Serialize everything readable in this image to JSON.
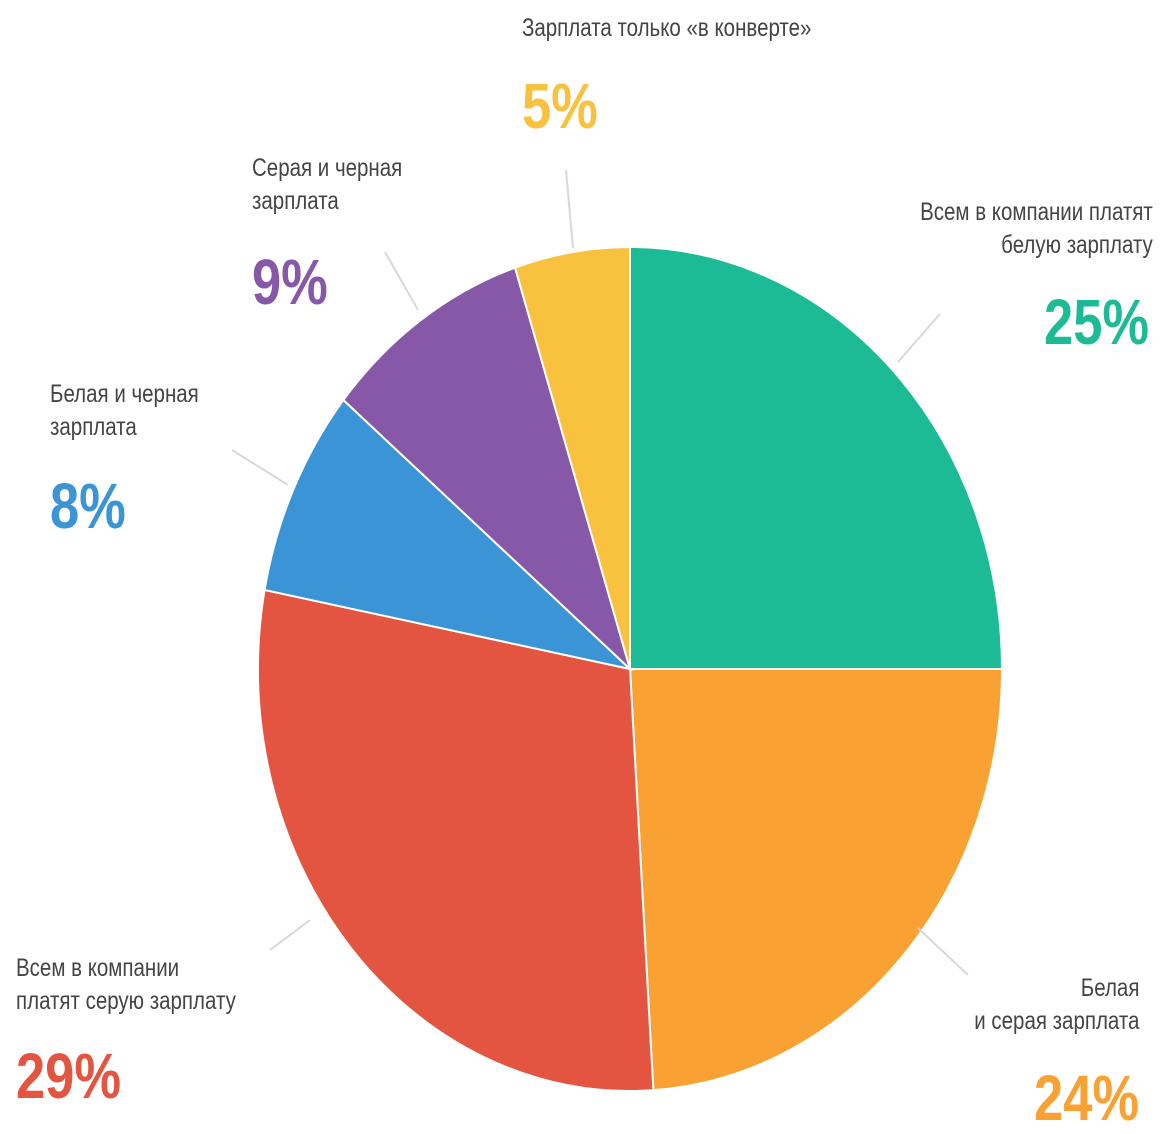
{
  "chart_data": {
    "type": "pie",
    "title": "",
    "start": "12 o'clock, clockwise",
    "slices": [
      {
        "label": "Всем в компании платят белую зарплату",
        "value": 25,
        "display": "25%",
        "color": "#1dbb95"
      },
      {
        "label": "Белая и серая зарплата",
        "value": 24,
        "display": "24%",
        "color": "#f9a233"
      },
      {
        "label": "Всем в компании платят серую зарплату",
        "value": 29,
        "display": "29%",
        "color": "#e35441"
      },
      {
        "label": "Белая и черная зарплата",
        "value": 8,
        "display": "8%",
        "color": "#3a94d6"
      },
      {
        "label": "Серая и черная зарплата",
        "value": 9,
        "display": "9%",
        "color": "#8757a8"
      },
      {
        "label": "Зарплата только «в конверте»",
        "value": 5,
        "display": "5%",
        "color": "#f8c23e"
      }
    ]
  },
  "labels": {
    "s0_line1": "Всем в компании платят",
    "s0_line2": "белую зарплату",
    "s1_line1": "Белая",
    "s1_line2": "и серая зарплата",
    "s2_line1": "Всем в компании",
    "s2_line2": "платят серую зарплату",
    "s3_line1": "Белая и черная",
    "s3_line2": "зарплата",
    "s4_line1": "Серая и черная",
    "s4_line2": "зарплата",
    "s5_line1": "Зарплата только «в конверте»"
  }
}
